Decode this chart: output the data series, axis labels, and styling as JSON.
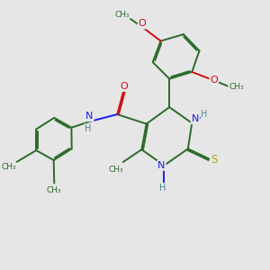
{
  "bg_color": "#e6e6e6",
  "bond_color": "#2a6a2a",
  "atom_colors": {
    "N": "#1a1aee",
    "O": "#cc1111",
    "S": "#aaaa00",
    "H_label": "#4a8a8a",
    "C": "#2a6a2a"
  },
  "font_size": 8.0,
  "bond_width": 1.4,
  "dbo": 0.055,
  "figsize": [
    3.0,
    3.0
  ],
  "dpi": 100,
  "xlim": [
    0,
    10
  ],
  "ylim": [
    0,
    10
  ]
}
